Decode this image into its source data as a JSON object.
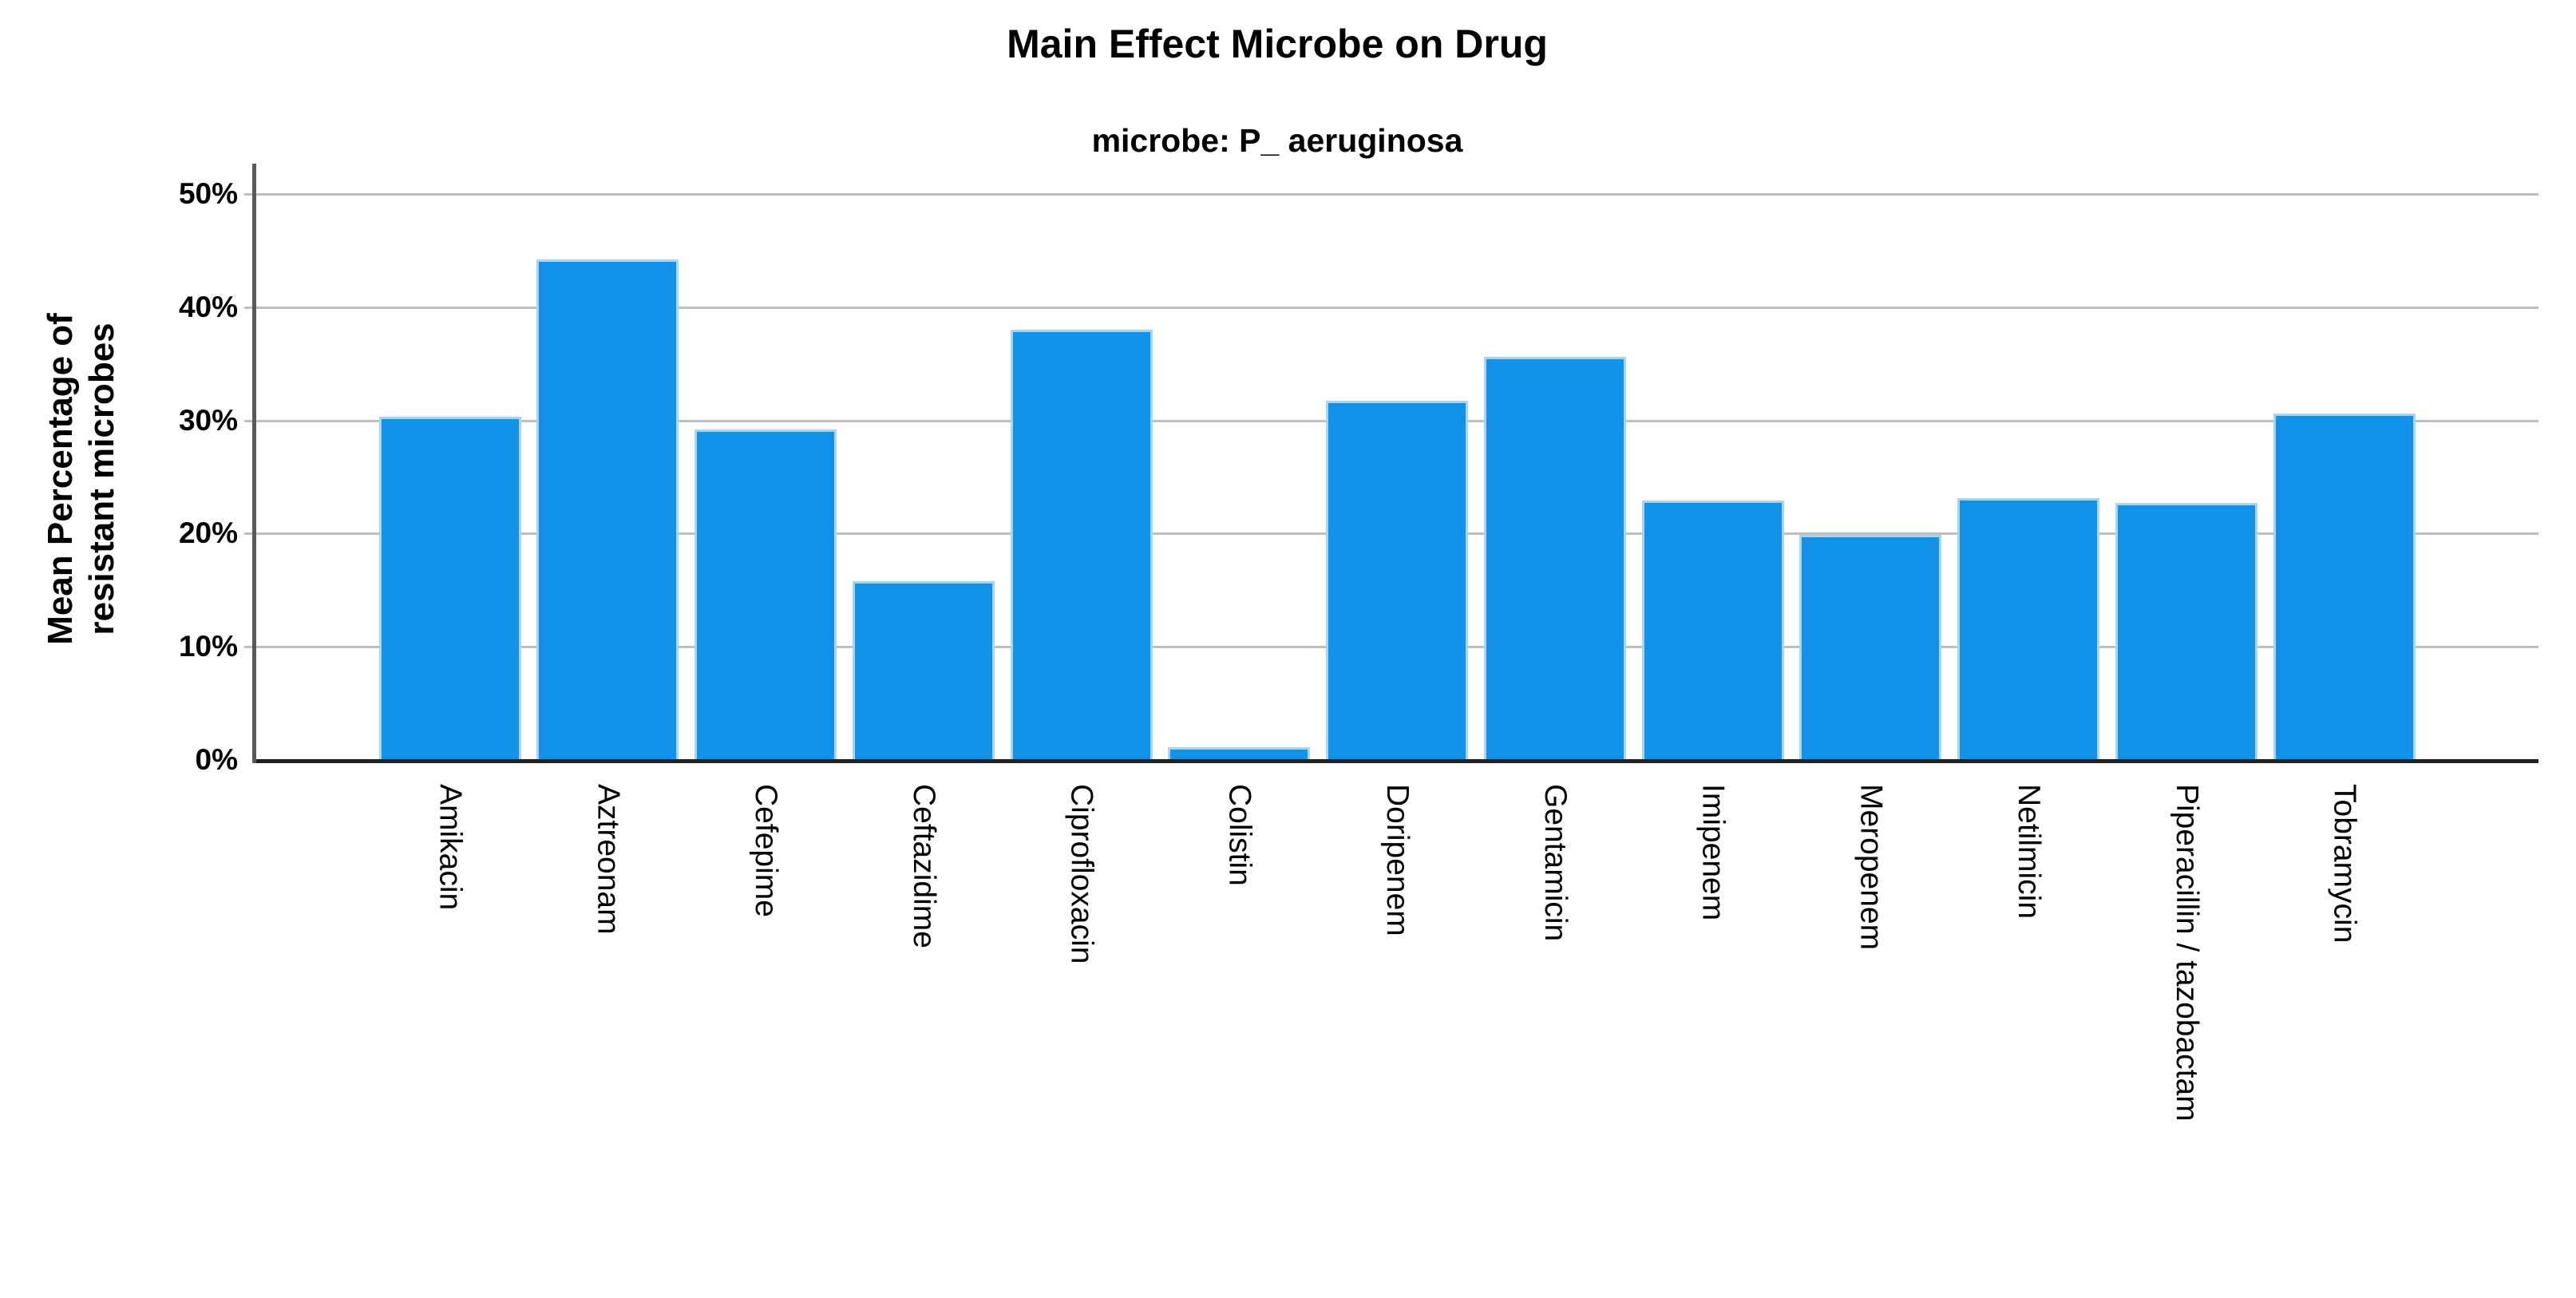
{
  "chart": {
    "title": "Main Effect Microbe on Drug",
    "subtitle": "microbe: P_ aeruginosa",
    "ylabel": "Mean Percentage of\nresistant microbes"
  },
  "chart_data": {
    "type": "bar",
    "title": "Main Effect Microbe on Drug",
    "subtitle": "microbe: P_ aeruginosa",
    "xlabel": "",
    "ylabel": "Mean Percentage of resistant microbes",
    "unit": "%",
    "ylim": [
      0,
      50
    ],
    "ytick_values": [
      0,
      10,
      20,
      30,
      40,
      50
    ],
    "ytick_labels": [
      "0%",
      "10%",
      "20%",
      "30%",
      "40%",
      "50%"
    ],
    "grid": "horizontal",
    "legend": "none",
    "categories": [
      "Amikacin",
      "Aztreonam",
      "Cefepime",
      "Ceftazidime",
      "Ciprofloxacin",
      "Colistin",
      "Doripenem",
      "Gentamicin",
      "Imipenem",
      "Meropenem",
      "Netilmicin",
      "Piperacillin / tazobactam",
      "Tobramycin"
    ],
    "values": [
      30.3,
      44.2,
      29.2,
      15.8,
      38.0,
      1.1,
      31.7,
      35.6,
      22.9,
      19.9,
      23.1,
      22.7,
      30.6
    ],
    "colors": {
      "bar_fill": "#1191E8",
      "bar_border": "#A9D4F2",
      "gridline": "#BFBFBF",
      "baseline": "#212121",
      "y_axis_line": "#595959",
      "text": "#000000"
    }
  }
}
